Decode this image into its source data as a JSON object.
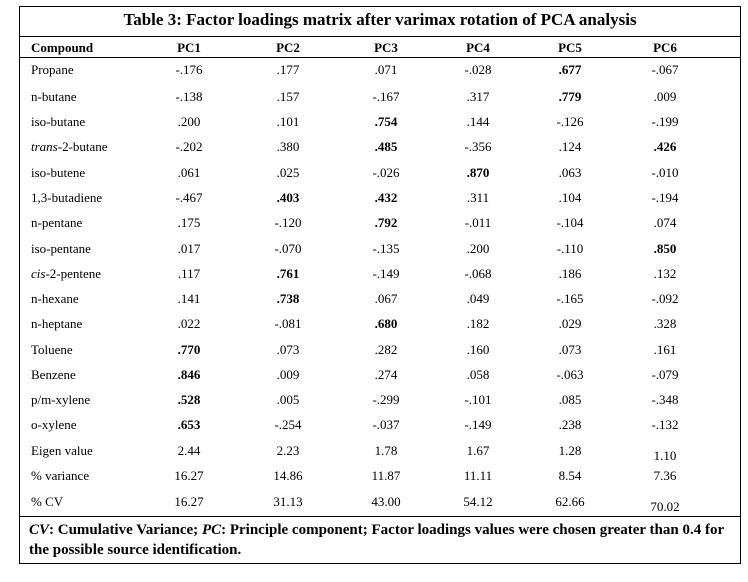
{
  "table": {
    "title": "Table 3: Factor loadings matrix after varimax rotation of PCA analysis",
    "compound_header": "Compound",
    "columns": [
      "PC1",
      "PC2",
      "PC3",
      "PC4",
      "PC5",
      "PC6"
    ],
    "rows": [
      {
        "label": "Propane",
        "values": [
          "-.176",
          ".177",
          ".071",
          "-.028",
          ".677",
          "-.067"
        ]
      },
      {
        "label": "n-butane",
        "values": [
          "-.138",
          ".157",
          "-.167",
          ".317",
          ".779",
          ".009"
        ]
      },
      {
        "label": "iso-butane",
        "values": [
          ".200",
          ".101",
          ".754",
          ".144",
          "-.126",
          "-.199"
        ]
      },
      {
        "label_italic": "trans",
        "label_rest": "-2-butane",
        "values": [
          "-.202",
          ".380",
          ".485",
          "-.356",
          ".124",
          ".426"
        ]
      },
      {
        "label": "iso-butene",
        "values": [
          ".061",
          ".025",
          "-.026",
          ".870",
          ".063",
          "-.010"
        ]
      },
      {
        "label": "1,3-butadiene",
        "values": [
          "-.467",
          ".403",
          ".432",
          ".311",
          ".104",
          "-.194"
        ]
      },
      {
        "label": "n-pentane",
        "values": [
          ".175",
          "-.120",
          ".792",
          "-.011",
          "-.104",
          ".074"
        ]
      },
      {
        "label": "iso-pentane",
        "values": [
          ".017",
          "-.070",
          "-.135",
          ".200",
          "-.110",
          ".850"
        ]
      },
      {
        "label_italic": "cis",
        "label_rest": "-2-pentene",
        "values": [
          ".117",
          ".761",
          "-.149",
          "-.068",
          ".186",
          ".132"
        ]
      },
      {
        "label": "n-hexane",
        "values": [
          ".141",
          ".738",
          ".067",
          ".049",
          "-.165",
          "-.092"
        ]
      },
      {
        "label": "n-heptane",
        "values": [
          ".022",
          "-.081",
          ".680",
          ".182",
          ".029",
          ".328"
        ]
      },
      {
        "label": "Toluene",
        "values": [
          ".770",
          ".073",
          ".282",
          ".160",
          ".073",
          ".161"
        ]
      },
      {
        "label": "Benzene",
        "values": [
          ".846",
          ".009",
          ".274",
          ".058",
          "-.063",
          "-.079"
        ]
      },
      {
        "label": "p/m-xylene",
        "values": [
          ".528",
          ".005",
          "-.299",
          "-.101",
          ".085",
          "-.348"
        ]
      },
      {
        "label": "o-xylene",
        "values": [
          ".653",
          "-.254",
          "-.037",
          "-.149",
          ".238",
          "-.132"
        ]
      },
      {
        "label": "Eigen value",
        "values": [
          "2.44",
          "2.23",
          "1.78",
          "1.67",
          "1.28",
          "1.10"
        ]
      },
      {
        "label": "% variance",
        "values": [
          "16.27",
          "14.86",
          "11.87",
          "11.11",
          "8.54",
          "7.36"
        ]
      },
      {
        "label": "% CV",
        "values": [
          "16.27",
          "31.13",
          "43.00",
          "54.12",
          "62.66",
          "70.02"
        ]
      }
    ]
  },
  "footnote": {
    "cv_abbr": "CV",
    "cv_text": ": Cumulative Variance; ",
    "pc_abbr": "PC",
    "pc_text": ": Principle component; Factor loadings values were chosen greater than 0.4 for the possible source identification."
  }
}
